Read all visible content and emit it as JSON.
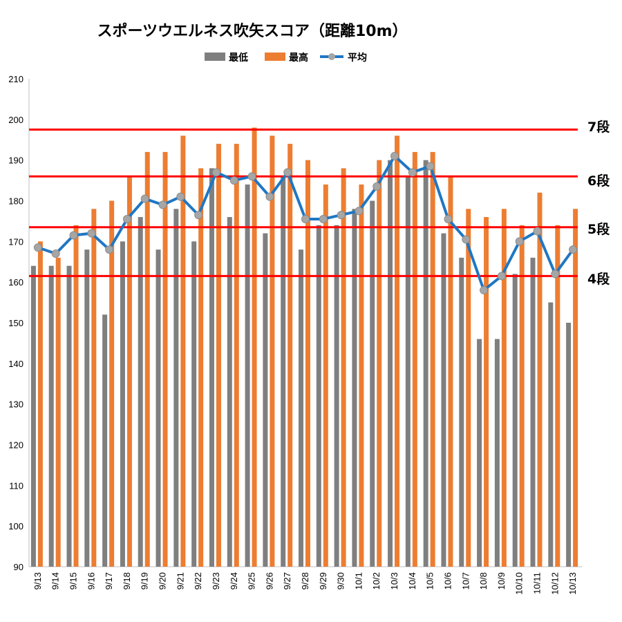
{
  "chart_data": {
    "type": "bar",
    "title": "スポーツウエルネス吹矢スコア（距離10m）",
    "categories": [
      "9/13",
      "9/14",
      "9/15",
      "9/16",
      "9/17",
      "9/18",
      "9/19",
      "9/20",
      "9/21",
      "9/22",
      "9/23",
      "9/24",
      "9/25",
      "9/26",
      "9/27",
      "9/28",
      "9/29",
      "9/30",
      "10/1",
      "10/2",
      "10/3",
      "10/4",
      "10/5",
      "10/6",
      "10/7",
      "10/8",
      "10/9",
      "10/10",
      "10/11",
      "10/12",
      "10/13"
    ],
    "series": [
      {
        "name": "最低",
        "kind": "bar",
        "color": "#7f7f7f",
        "values": [
          164,
          164,
          164,
          168,
          152,
          170,
          176,
          168,
          178,
          170,
          188,
          176,
          184,
          172,
          186,
          168,
          174,
          174,
          178,
          180,
          190,
          186,
          190,
          172,
          166,
          146,
          146,
          162,
          166,
          155,
          150
        ]
      },
      {
        "name": "最高",
        "kind": "bar",
        "color": "#ed7d31",
        "values": [
          170,
          166,
          174,
          178,
          180,
          186,
          192,
          192,
          196,
          188,
          194,
          194,
          198,
          196,
          194,
          190,
          184,
          188,
          184,
          190,
          196,
          192,
          192,
          186,
          178,
          176,
          178,
          174,
          182,
          174,
          178
        ]
      },
      {
        "name": "平均",
        "kind": "line",
        "color": "#1f77c4",
        "marker_color": "#a6a6a6",
        "values": [
          168.5,
          167.0,
          171.5,
          172.0,
          168.0,
          175.5,
          180.5,
          179.0,
          181.0,
          176.5,
          187.0,
          185.0,
          186.0,
          181.0,
          187.0,
          175.5,
          175.5,
          176.5,
          177.5,
          183.5,
          191.0,
          187.0,
          188.5,
          175.5,
          170.5,
          158.0,
          161.5,
          170.0,
          172.5,
          162.0,
          168.0
        ]
      }
    ],
    "ylim": [
      90,
      210
    ],
    "yticks": [
      90,
      100,
      110,
      120,
      130,
      140,
      150,
      160,
      170,
      180,
      190,
      200,
      210
    ],
    "grid": false,
    "legend_position": "top",
    "reference_lines": [
      {
        "value": 197.5,
        "label": "7段",
        "color": "#ff0000"
      },
      {
        "value": 186,
        "label": "6段",
        "color": "#ff0000"
      },
      {
        "value": 173.5,
        "label": "5段",
        "color": "#ff0000"
      },
      {
        "value": 161.5,
        "label": "4段",
        "color": "#ff0000"
      }
    ]
  }
}
